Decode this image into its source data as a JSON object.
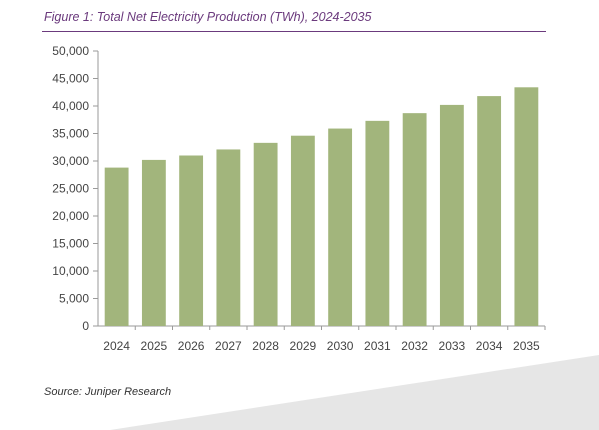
{
  "figure_title": "Figure 1: Total Net Electricity Production (TWh), 2024-2035",
  "source": "Source: Juniper Research",
  "colors": {
    "bar": "#a2b57c",
    "title": "#6b3a7d",
    "axis": "#9a9a9a",
    "footer_band": "#e6e6e6"
  },
  "chart_data": {
    "type": "bar",
    "title": "Figure 1: Total Net Electricity Production (TWh), 2024-2035",
    "xlabel": "",
    "ylabel": "",
    "categories": [
      "2024",
      "2025",
      "2026",
      "2027",
      "2028",
      "2029",
      "2030",
      "2031",
      "2032",
      "2033",
      "2034",
      "2035"
    ],
    "values": [
      28800,
      30200,
      31000,
      32100,
      33300,
      34600,
      35900,
      37300,
      38700,
      40200,
      41800,
      43400
    ],
    "ylim": [
      0,
      50000
    ],
    "yticks": [
      "0",
      "5,000",
      "10,000",
      "15,000",
      "20,000",
      "25,000",
      "30,000",
      "35,000",
      "40,000",
      "45,000",
      "50,000"
    ],
    "grid": false,
    "legend": "none"
  }
}
